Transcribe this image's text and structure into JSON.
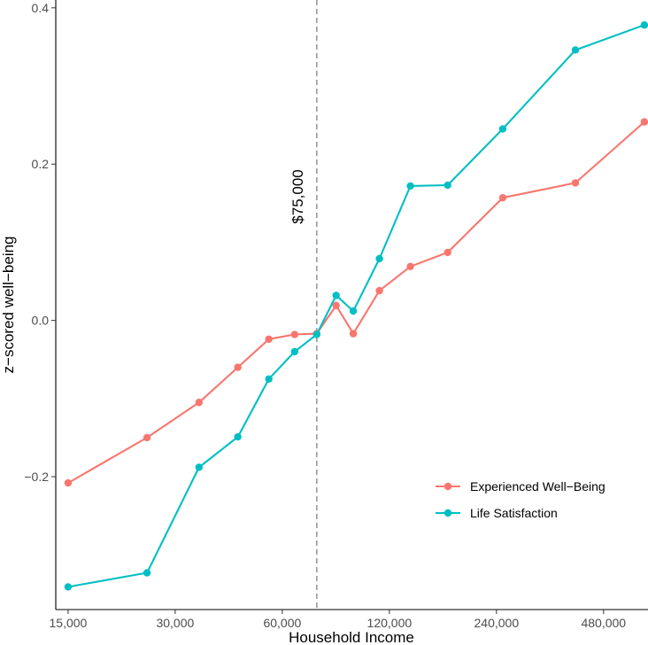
{
  "chart_data": {
    "type": "line",
    "xlabel": "Household Income",
    "ylabel": "z−scored well−being",
    "x_scale": "log2",
    "xlim": [
      13850,
      640000
    ],
    "ylim": [
      -0.37,
      0.41
    ],
    "x_ticks": [
      15000,
      30000,
      60000,
      120000,
      240000,
      480000
    ],
    "x_tick_labels": [
      "15,000",
      "30,000",
      "60,000",
      "120,000",
      "240,000",
      "480,000"
    ],
    "y_ticks": [
      -0.2,
      0.0,
      0.2,
      0.4
    ],
    "y_tick_labels": [
      "−0.2",
      "0.0",
      "0.2",
      "0.4"
    ],
    "grid": false,
    "legend_position": "bottom-right",
    "reference_line": {
      "x": 75000,
      "label": "$75,000",
      "style": "dashed",
      "color": "#999999"
    },
    "series": [
      {
        "name": "Experienced Well−Being",
        "color": "#F8766D",
        "points": [
          [
            15000,
            -0.208
          ],
          [
            25000,
            -0.15
          ],
          [
            35000,
            -0.105
          ],
          [
            45000,
            -0.06
          ],
          [
            55000,
            -0.024
          ],
          [
            65000,
            -0.018
          ],
          [
            75000,
            -0.017
          ],
          [
            85000,
            0.019
          ],
          [
            95000,
            -0.017
          ],
          [
            112500,
            0.038
          ],
          [
            137500,
            0.069
          ],
          [
            175000,
            0.087
          ],
          [
            250000,
            0.157
          ],
          [
            400000,
            0.176
          ],
          [
            625000,
            0.254
          ]
        ]
      },
      {
        "name": "Life Satisfaction",
        "color": "#00BFC4",
        "points": [
          [
            15000,
            -0.341
          ],
          [
            25000,
            -0.323
          ],
          [
            35000,
            -0.188
          ],
          [
            45000,
            -0.149
          ],
          [
            55000,
            -0.075
          ],
          [
            65000,
            -0.04
          ],
          [
            75000,
            -0.018
          ],
          [
            85000,
            0.032
          ],
          [
            95000,
            0.012
          ],
          [
            112500,
            0.079
          ],
          [
            137500,
            0.172
          ],
          [
            175000,
            0.173
          ],
          [
            250000,
            0.245
          ],
          [
            400000,
            0.346
          ],
          [
            625000,
            0.378
          ]
        ]
      }
    ]
  }
}
